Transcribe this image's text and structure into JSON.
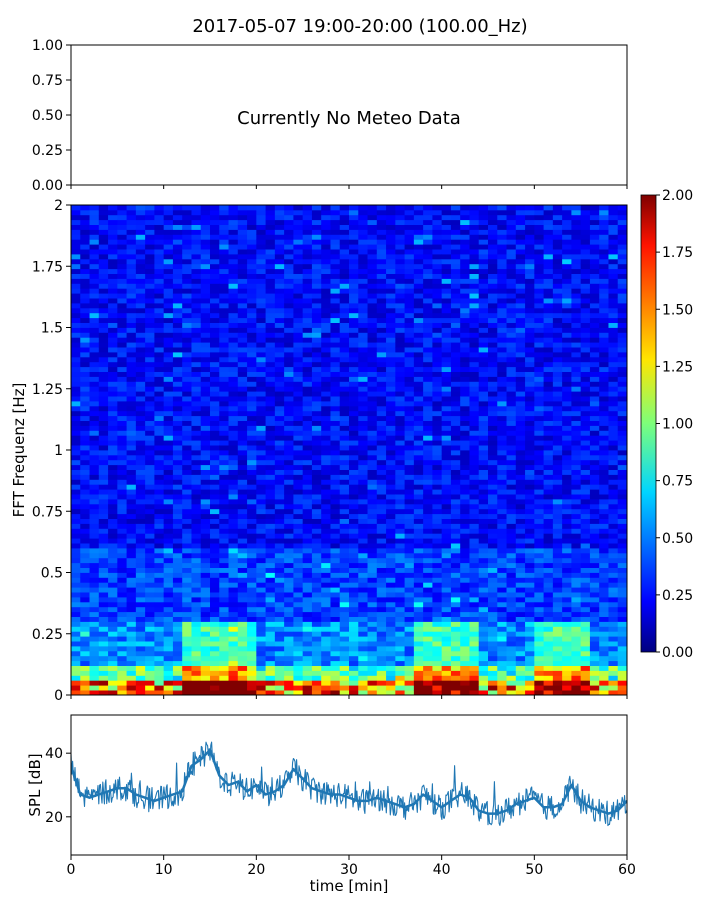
{
  "figure": {
    "title": "2017-05-07 19:00-20:00 (100.00_Hz)"
  },
  "chart_data": [
    {
      "type": "line",
      "panel": "meteo",
      "note_text": "Currently No Meteo Data",
      "ylim": [
        0,
        1
      ],
      "y_ticks": [
        "0.00",
        "0.25",
        "0.50",
        "0.75",
        "1.00"
      ],
      "xlim": [
        0,
        60
      ],
      "x_tick_labels_visible": false,
      "series": []
    },
    {
      "type": "heatmap",
      "panel": "spectrogram",
      "ylabel": "FFT Frequenz [Hz]",
      "xlim": [
        0,
        60
      ],
      "ylim": [
        0,
        2
      ],
      "y_ticks": [
        "0",
        "0.25",
        "0.5",
        "0.75",
        "1",
        "1.25",
        "1.5",
        "1.75",
        "2"
      ],
      "colormap": "jet",
      "color_range": [
        0,
        2
      ],
      "colorbar_ticks": [
        "0.00",
        "0.25",
        "0.50",
        "0.75",
        "1.00",
        "1.25",
        "1.50",
        "1.75",
        "2.00"
      ],
      "description_values": {
        "typical_value_above_0_5Hz": 0.25,
        "typical_value_0_1_to_0_3Hz": 0.6,
        "max_value_below_0_1Hz": 2.0,
        "high_energy_time_windows_min": [
          [
            12,
            20
          ],
          [
            37,
            44
          ],
          [
            50,
            56
          ]
        ]
      }
    },
    {
      "type": "line",
      "panel": "spl",
      "ylabel": "SPL [dB]",
      "xlabel": "time [min]",
      "xlim": [
        0,
        60
      ],
      "ylim": [
        8,
        52
      ],
      "x_ticks": [
        "0",
        "10",
        "20",
        "30",
        "40",
        "50",
        "60"
      ],
      "y_ticks": [
        "20",
        "40"
      ],
      "color": "#1f77b4",
      "x": [
        0,
        1,
        2,
        3,
        4,
        5,
        6,
        7,
        8,
        9,
        10,
        11,
        12,
        13,
        14,
        15,
        16,
        17,
        18,
        19,
        20,
        21,
        22,
        23,
        24,
        25,
        26,
        27,
        28,
        29,
        30,
        31,
        32,
        33,
        34,
        35,
        36,
        37,
        38,
        39,
        40,
        41,
        42,
        43,
        44,
        45,
        46,
        47,
        48,
        49,
        50,
        51,
        52,
        53,
        54,
        55,
        56,
        57,
        58,
        59,
        60
      ],
      "values": [
        36,
        27,
        26,
        27,
        28,
        29,
        29,
        27,
        26,
        25,
        26,
        27,
        28,
        36,
        38,
        41,
        33,
        30,
        31,
        28,
        30,
        27,
        28,
        30,
        35,
        32,
        29,
        28,
        27,
        27,
        26,
        25,
        25,
        26,
        25,
        24,
        23,
        24,
        27,
        25,
        23,
        25,
        27,
        26,
        22,
        21,
        21,
        22,
        24,
        25,
        26,
        23,
        23,
        24,
        30,
        25,
        23,
        22,
        21,
        22,
        25
      ],
      "band_halfwidth_db": 4
    }
  ]
}
